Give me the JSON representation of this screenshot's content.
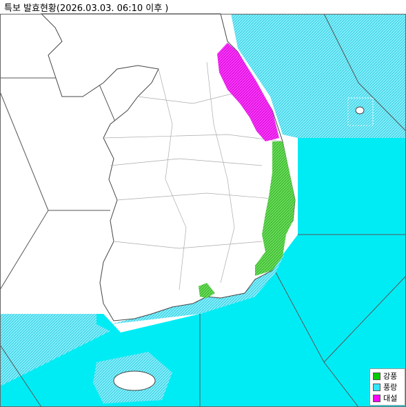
{
  "title": "특보 발효현황(2026.03.03. 06:10 이후 )",
  "legend": [
    {
      "label": "강풍",
      "color": "#00cc00"
    },
    {
      "label": "풍랑",
      "color": "#33e6ff"
    },
    {
      "label": "대설",
      "color": "#ff00ff"
    }
  ]
}
